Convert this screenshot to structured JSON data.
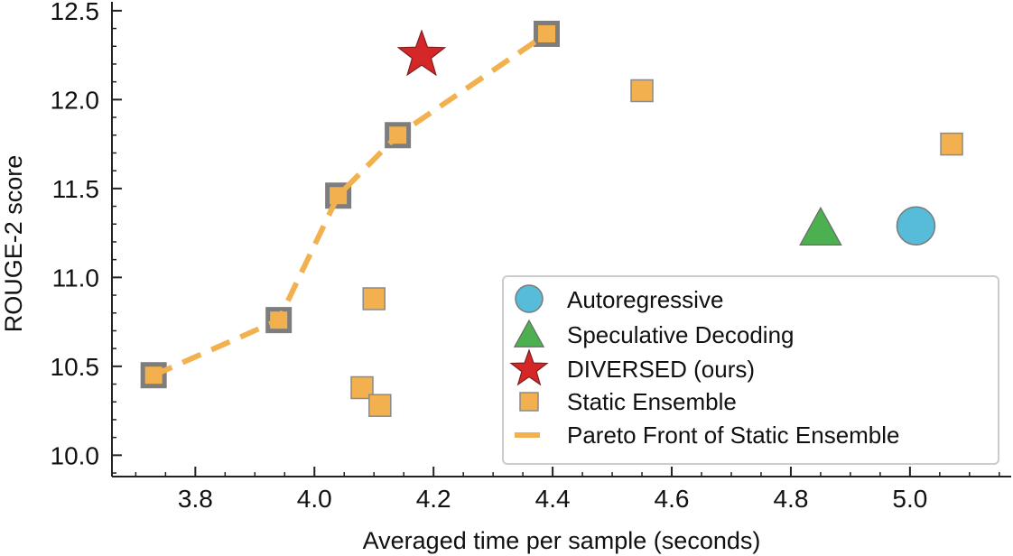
{
  "chart_data": {
    "type": "scatter",
    "title": "",
    "xlabel": "Averaged time per sample (seconds)",
    "ylabel": "ROUGE-2 score",
    "xlim": [
      3.66,
      5.17
    ],
    "ylim": [
      9.88,
      12.55
    ],
    "xticks": [
      3.8,
      4.0,
      4.2,
      4.4,
      4.6,
      4.8,
      5.0
    ],
    "xtick_labels": [
      "3.8",
      "4.0",
      "4.2",
      "4.4",
      "4.6",
      "4.8",
      "5.0"
    ],
    "yticks": [
      10.0,
      10.5,
      11.0,
      11.5,
      12.0,
      12.5
    ],
    "ytick_labels": [
      "10.0",
      "10.5",
      "11.0",
      "11.5",
      "12.0",
      "12.5"
    ],
    "legend_position": "bottom-right",
    "series": [
      {
        "name": "Autoregressive",
        "marker": "circle",
        "color": "#56bcd9",
        "points": [
          {
            "x": 5.01,
            "y": 11.29
          }
        ]
      },
      {
        "name": "Speculative Decoding",
        "marker": "triangle",
        "color": "#4caf50",
        "points": [
          {
            "x": 4.85,
            "y": 11.25
          }
        ]
      },
      {
        "name": "DIVERSED (ours)",
        "marker": "star",
        "color": "#d62728",
        "points": [
          {
            "x": 4.18,
            "y": 12.25
          }
        ]
      },
      {
        "name": "Static Ensemble",
        "marker": "square",
        "color": "#f2b14e",
        "points": [
          {
            "x": 3.73,
            "y": 10.45
          },
          {
            "x": 3.94,
            "y": 10.76
          },
          {
            "x": 4.04,
            "y": 11.46
          },
          {
            "x": 4.14,
            "y": 11.8
          },
          {
            "x": 4.39,
            "y": 12.37
          },
          {
            "x": 4.55,
            "y": 12.05
          },
          {
            "x": 5.07,
            "y": 11.75
          },
          {
            "x": 4.1,
            "y": 10.88
          },
          {
            "x": 4.08,
            "y": 10.38
          },
          {
            "x": 4.11,
            "y": 10.28
          }
        ]
      },
      {
        "name": "Pareto Front of Static Ensemble",
        "marker": "dashed-line",
        "color": "#f2b14e",
        "points": [
          {
            "x": 3.73,
            "y": 10.45
          },
          {
            "x": 3.94,
            "y": 10.76
          },
          {
            "x": 4.04,
            "y": 11.46
          },
          {
            "x": 4.14,
            "y": 11.8
          },
          {
            "x": 4.39,
            "y": 12.37
          }
        ]
      }
    ]
  }
}
